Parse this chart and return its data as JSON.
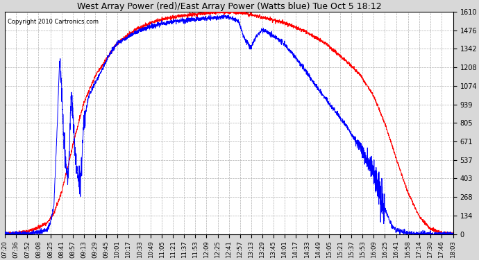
{
  "title": "West Array Power (red)/East Array Power (Watts blue) Tue Oct 5 18:12",
  "copyright": "Copyright 2010 Cartronics.com",
  "background_color": "#d8d8d8",
  "plot_bg_color": "#ffffff",
  "grid_color": "#b0b0b0",
  "red_color": "#ff0000",
  "blue_color": "#0000ff",
  "ymin": 0.0,
  "ymax": 1610.3,
  "yticks": [
    0.0,
    134.2,
    268.4,
    402.6,
    536.8,
    671.0,
    805.2,
    939.3,
    1073.5,
    1207.7,
    1341.9,
    1476.1,
    1610.3
  ],
  "x_labels": [
    "07:20",
    "07:36",
    "07:52",
    "08:08",
    "08:25",
    "08:41",
    "08:57",
    "09:13",
    "09:29",
    "09:45",
    "10:01",
    "10:17",
    "10:33",
    "10:49",
    "11:05",
    "11:21",
    "11:37",
    "11:53",
    "12:09",
    "12:25",
    "12:41",
    "12:57",
    "13:13",
    "13:29",
    "13:45",
    "14:01",
    "14:17",
    "14:33",
    "14:49",
    "15:05",
    "15:21",
    "15:37",
    "15:53",
    "16:09",
    "16:25",
    "16:41",
    "16:58",
    "17:14",
    "17:30",
    "17:46",
    "18:03"
  ]
}
